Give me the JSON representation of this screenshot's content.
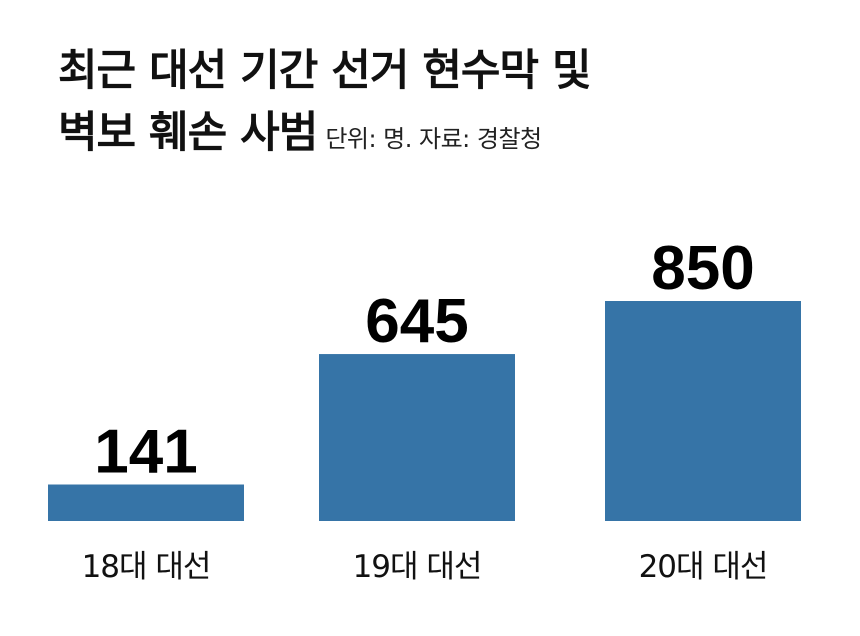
{
  "title_line1": "최근 대선 기간 선거 현수막 및",
  "title_line2": "벽보 훼손 사범",
  "subtitle": "단위: 명. 자료: 경찰청",
  "bar_color": "#3674a7",
  "chart_data": {
    "type": "bar",
    "categories": [
      "18대 대선",
      "19대 대선",
      "20대 대선"
    ],
    "values": [
      141,
      645,
      850
    ],
    "title": "최근 대선 기간 선거 현수막 및 벽보 훼손 사범",
    "subtitle": "단위: 명. 자료: 경찰청",
    "xlabel": "",
    "ylabel": "",
    "unit": "명",
    "ylim": [
      0,
      850
    ],
    "grid": false,
    "legend": "none",
    "data_labels": true
  }
}
